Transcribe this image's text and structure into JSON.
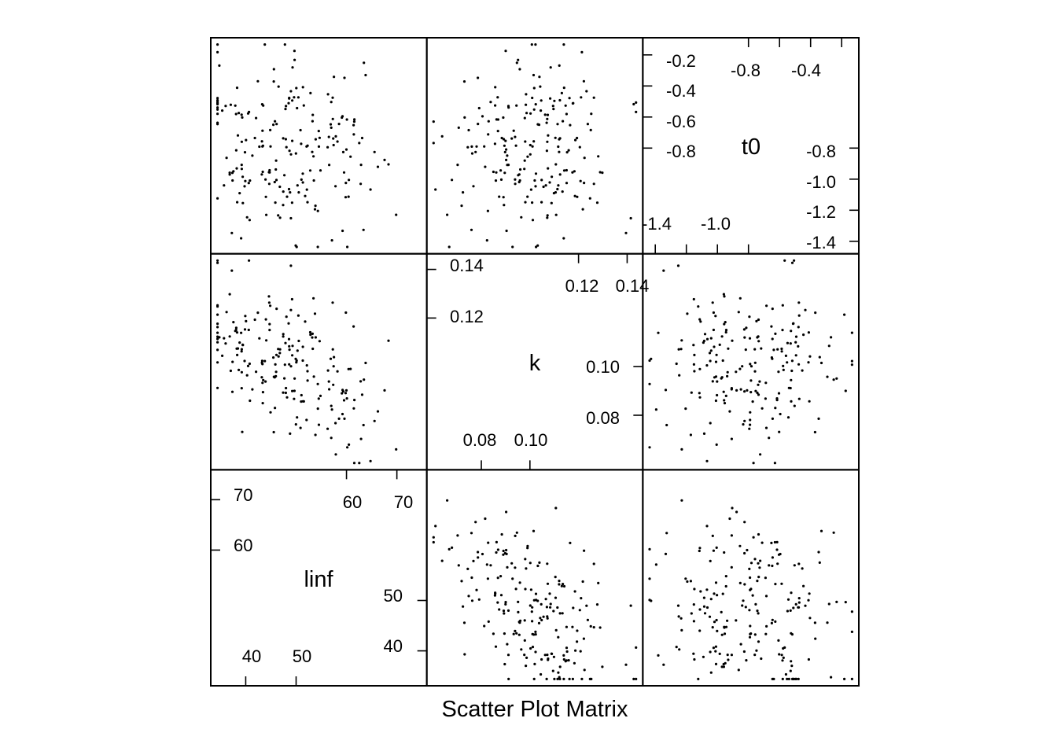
{
  "chart_data": {
    "type": "scatter",
    "title": "",
    "xlabel": "Scatter Plot Matrix",
    "ylabel": "",
    "grid": false,
    "legend": "none",
    "point_color": "#000000",
    "variables": [
      {
        "name": "linf",
        "range": [
          34.0,
          75.0
        ],
        "ticks_low": [
          40,
          50
        ],
        "ticks_high": [
          60,
          70
        ]
      },
      {
        "name": "k",
        "range": [
          0.0595,
          0.1445
        ],
        "ticks_low": [
          0.08,
          0.1
        ],
        "ticks_high": [
          0.12,
          0.14
        ]
      },
      {
        "name": "t0",
        "range": [
          -1.45,
          -0.12
        ],
        "ticks_low": [
          -1.4,
          -1.2,
          -1.0,
          -0.8
        ],
        "ticks_high": [
          -0.8,
          -0.6,
          -0.4,
          -0.2
        ]
      }
    ],
    "tick_labels": {
      "linf": {
        "t40": "40",
        "t50": "50",
        "t60": "60",
        "t70": "70"
      },
      "k": {
        "t008": "0.08",
        "t010": "0.10",
        "t012": "0.12",
        "t014": "0.14"
      },
      "t0": {
        "tm14": "-1.4",
        "tm12": "-1.2",
        "tm10": "-1.0",
        "tm08": "-0.8",
        "tm06": "-0.6",
        "tm04": "-0.4",
        "tm02": "-0.2"
      }
    },
    "n_points": 200,
    "distribution": {
      "linf_center": 49.0,
      "linf_spread": 9.5,
      "k_center": 0.1,
      "k_spread": 0.018,
      "t0_center": -0.8,
      "t0_spread": 0.3,
      "corr_linf_k": -0.45,
      "corr_linf_t0": 0.0,
      "corr_k_t0": 0.0
    }
  }
}
